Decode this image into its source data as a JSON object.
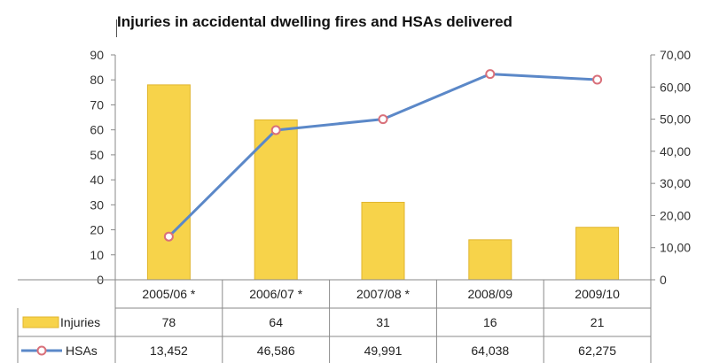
{
  "chart_data": {
    "type": "bar",
    "title": "Injuries in accidental dwelling fires and HSAs delivered",
    "categories": [
      "2005/06 *",
      "2006/07 *",
      "2007/08 *",
      "2008/09",
      "2009/10"
    ],
    "series": [
      {
        "name": "Injuries",
        "type": "bar",
        "axis": "left",
        "values": [
          78,
          64,
          31,
          16,
          21
        ],
        "labels": [
          "78",
          "64",
          "31",
          "16",
          "21"
        ],
        "color": "#f7d34a"
      },
      {
        "name": "HSAs",
        "type": "line",
        "axis": "right",
        "values": [
          13452,
          46586,
          49991,
          64038,
          62275
        ],
        "labels": [
          "13,452",
          "46,586",
          "49,991",
          "64,038",
          "62,275"
        ],
        "color": "#5b88c8",
        "marker_color": "#d9707a"
      }
    ],
    "left_axis": {
      "ylim": [
        0,
        90
      ],
      "ticks": [
        "0",
        "10",
        "20",
        "30",
        "40",
        "50",
        "60",
        "70",
        "80",
        "90"
      ]
    },
    "right_axis": {
      "ylim": [
        0,
        70000
      ],
      "ticks": [
        "0",
        "10,00",
        "20,00",
        "30,00",
        "40,00",
        "50,00",
        "60,00",
        "70,00"
      ]
    },
    "grid": false,
    "legend": "data-table"
  }
}
